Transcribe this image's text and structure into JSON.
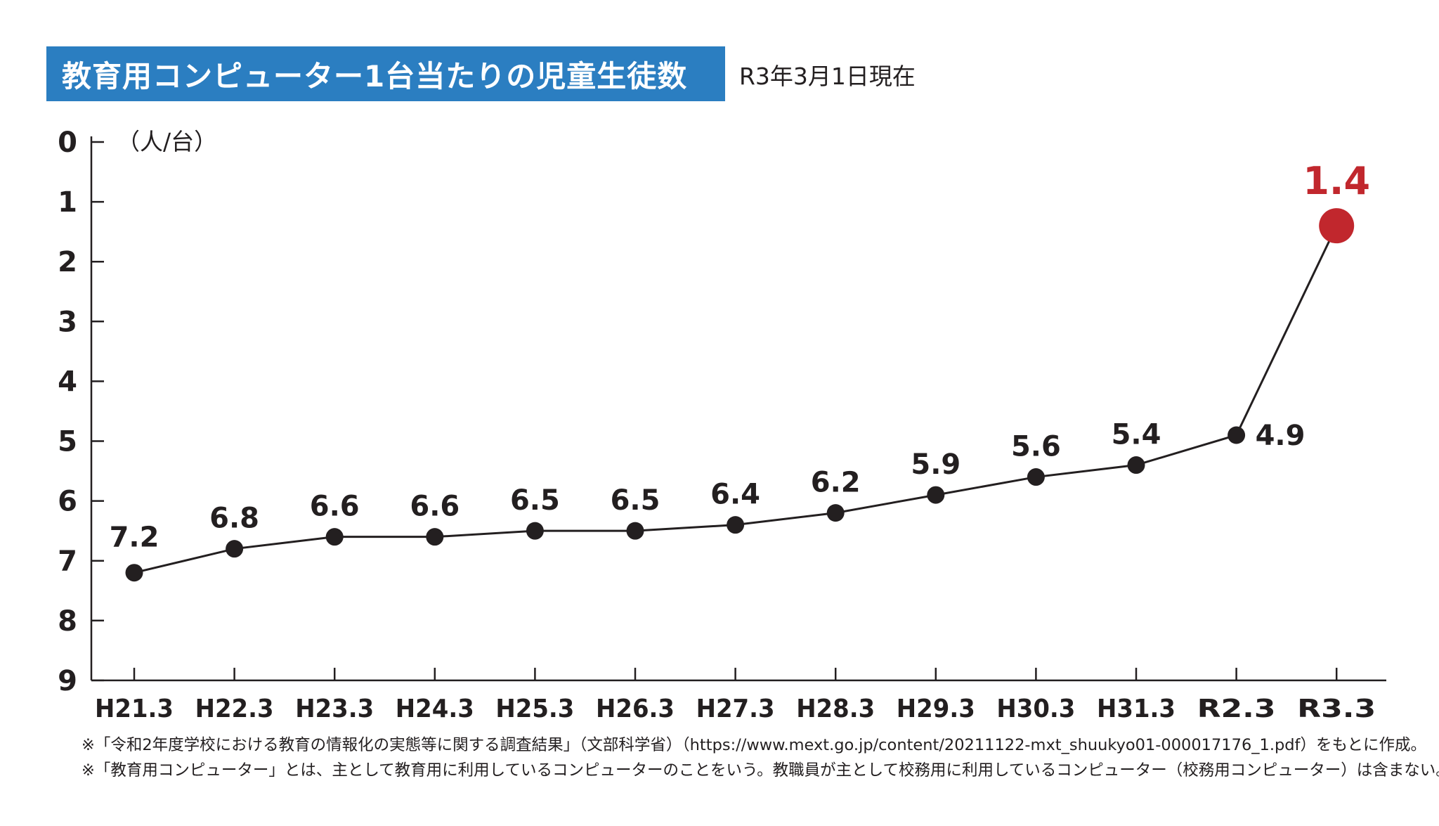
{
  "header": {
    "title": "教育用コンピューター1台当たりの児童生徒数",
    "subtitle": "R3年3月1日現在"
  },
  "chart_data": {
    "type": "line",
    "title": "教育用コンピューター1台当たりの児童生徒数",
    "ylabel": "（人/台）",
    "xlabel": "",
    "y_inverted": true,
    "ylim": [
      0,
      9
    ],
    "yticks": [
      0,
      1,
      2,
      3,
      4,
      5,
      6,
      7,
      8,
      9
    ],
    "categories": [
      "H21.3",
      "H22.3",
      "H23.3",
      "H24.3",
      "H25.3",
      "H26.3",
      "H27.3",
      "H28.3",
      "H29.3",
      "H30.3",
      "H31.3",
      "R2.3",
      "R3.3"
    ],
    "values": [
      7.2,
      6.8,
      6.6,
      6.6,
      6.5,
      6.5,
      6.4,
      6.2,
      5.9,
      5.6,
      5.4,
      4.9,
      1.4
    ],
    "value_labels": [
      "7.2",
      "6.8",
      "6.6",
      "6.6",
      "6.5",
      "6.5",
      "6.4",
      "6.2",
      "5.9",
      "5.6",
      "5.4",
      "4.9",
      "1.4"
    ],
    "highlight_index": 12,
    "line_color": "#231f20",
    "highlight_color": "#c1272d"
  },
  "notes": [
    "※「令和2年度学校における教育の情報化の実態等に関する調査結果」（文部科学省）（https://www.mext.go.jp/content/20211122-mxt_shuukyo01-000017176_1.pdf）をもとに作成。",
    "※「教育用コンピューター」とは、主として教育用に利用しているコンピューターのことをいう。教職員が主として校務用に利用しているコンピューター（校務用コンピューター）は含まない。"
  ],
  "colors": {
    "title_bg": "#2b7ec1",
    "title_text": "#ffffff",
    "axis": "#231f20",
    "highlight": "#c1272d"
  }
}
